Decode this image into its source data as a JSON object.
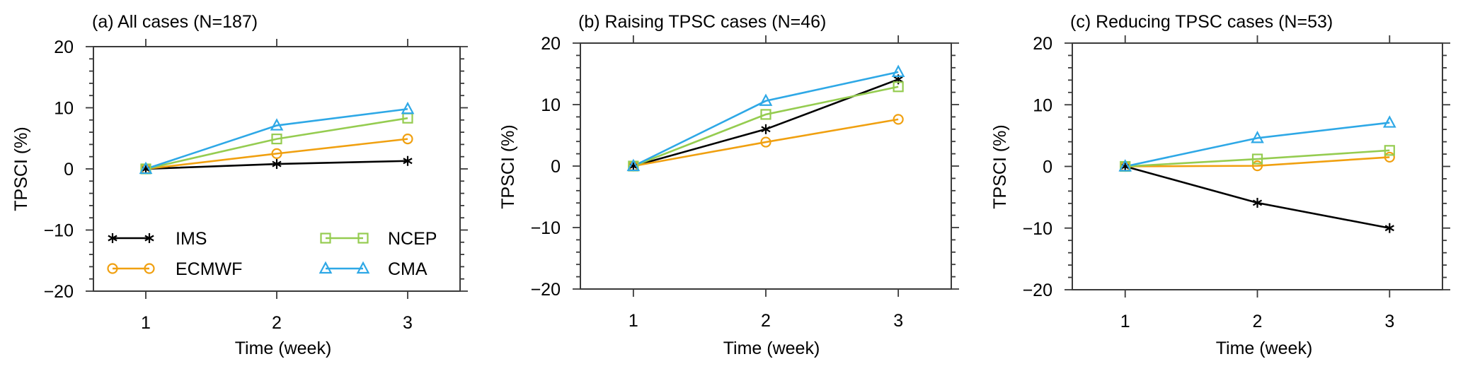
{
  "chart_data": [
    {
      "type": "line",
      "title": "(a) All cases (N=187)",
      "xlabel": "Time (week)",
      "ylabel": "TPSCI (%)",
      "x": [
        1,
        2,
        3
      ],
      "xticks": [
        "1",
        "2",
        "3"
      ],
      "xlim": [
        0.6,
        3.4
      ],
      "ylim": [
        -20,
        20
      ],
      "yticks": [
        "-20",
        "-10",
        "0",
        "10",
        "20"
      ],
      "grid": false,
      "legend": "bottom-left",
      "series": [
        {
          "name": "IMS",
          "color": "#000000",
          "marker": "asterisk",
          "values": [
            0,
            0.8,
            1.3
          ]
        },
        {
          "name": "ECMWF",
          "color": "#f0a010",
          "marker": "circle",
          "values": [
            0,
            2.5,
            4.9
          ]
        },
        {
          "name": "NCEP",
          "color": "#95cc50",
          "marker": "square",
          "values": [
            0,
            4.9,
            8.3
          ]
        },
        {
          "name": "CMA",
          "color": "#2ea8e6",
          "marker": "triangle",
          "values": [
            0,
            7.1,
            9.8
          ]
        }
      ]
    },
    {
      "type": "line",
      "title": "(b) Raising TPSC cases (N=46)",
      "xlabel": "Time (week)",
      "ylabel": "TPSCI (%)",
      "x": [
        1,
        2,
        3
      ],
      "xticks": [
        "1",
        "2",
        "3"
      ],
      "xlim": [
        0.6,
        3.4
      ],
      "ylim": [
        -20,
        20
      ],
      "yticks": [
        "-20",
        "-10",
        "0",
        "10",
        "20"
      ],
      "grid": false,
      "legend": "none",
      "series": [
        {
          "name": "IMS",
          "color": "#000000",
          "marker": "asterisk",
          "values": [
            0,
            6.0,
            14.1
          ]
        },
        {
          "name": "ECMWF",
          "color": "#f0a010",
          "marker": "circle",
          "values": [
            0,
            3.9,
            7.6
          ]
        },
        {
          "name": "NCEP",
          "color": "#95cc50",
          "marker": "square",
          "values": [
            0,
            8.4,
            12.9
          ]
        },
        {
          "name": "CMA",
          "color": "#2ea8e6",
          "marker": "triangle",
          "values": [
            0,
            10.6,
            15.3
          ]
        }
      ]
    },
    {
      "type": "line",
      "title": "(c) Reducing TPSC cases (N=53)",
      "xlabel": "Time (week)",
      "ylabel": "TPSCI (%)",
      "x": [
        1,
        2,
        3
      ],
      "xticks": [
        "1",
        "2",
        "3"
      ],
      "xlim": [
        0.6,
        3.4
      ],
      "ylim": [
        -20,
        20
      ],
      "yticks": [
        "-20",
        "-10",
        "0",
        "10",
        "20"
      ],
      "grid": false,
      "legend": "none",
      "series": [
        {
          "name": "IMS",
          "color": "#000000",
          "marker": "asterisk",
          "values": [
            0,
            -5.9,
            -10.0
          ]
        },
        {
          "name": "ECMWF",
          "color": "#f0a010",
          "marker": "circle",
          "values": [
            0,
            0.1,
            1.5
          ]
        },
        {
          "name": "NCEP",
          "color": "#95cc50",
          "marker": "square",
          "values": [
            0,
            1.2,
            2.6
          ]
        },
        {
          "name": "CMA",
          "color": "#2ea8e6",
          "marker": "triangle",
          "values": [
            0,
            4.6,
            7.1
          ]
        }
      ]
    }
  ],
  "legend": {
    "items": [
      {
        "name": "IMS",
        "color": "#000000",
        "marker": "asterisk"
      },
      {
        "name": "ECMWF",
        "color": "#f0a010",
        "marker": "circle"
      },
      {
        "name": "NCEP",
        "color": "#95cc50",
        "marker": "square"
      },
      {
        "name": "CMA",
        "color": "#2ea8e6",
        "marker": "triangle"
      }
    ]
  }
}
